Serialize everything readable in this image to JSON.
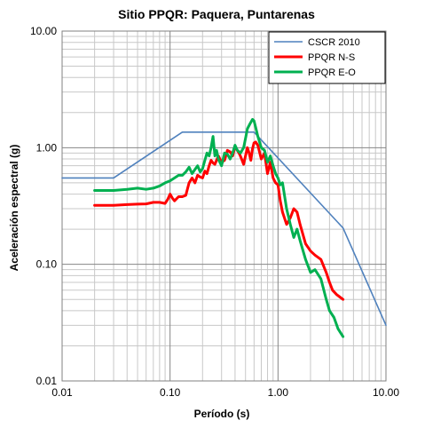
{
  "chart_data": {
    "type": "line",
    "title": "Sitio PPQR: Paquera, Puntarenas",
    "xlabel": "Período (s)",
    "ylabel": "Aceleración espectral (g)",
    "x_scale": "log",
    "y_scale": "log",
    "xlim": [
      0.01,
      10
    ],
    "ylim": [
      0.01,
      10
    ],
    "grid": true,
    "legend_position": "top-right",
    "x_ticks": [
      {
        "value": 0.01,
        "label": "0.01"
      },
      {
        "value": 0.1,
        "label": "0.10"
      },
      {
        "value": 1,
        "label": "1.00"
      },
      {
        "value": 10,
        "label": "10.00"
      }
    ],
    "y_ticks": [
      {
        "value": 10,
        "label": "10.00"
      },
      {
        "value": 1,
        "label": "1.00"
      },
      {
        "value": 0.1,
        "label": "0.10"
      },
      {
        "value": 0.01,
        "label": "0.01"
      }
    ],
    "series": [
      {
        "name": "CSCR 2010",
        "color": "#4f81bd",
        "x": [
          0.01,
          0.03,
          0.13,
          0.6,
          4.0,
          10.0
        ],
        "y": [
          0.55,
          0.55,
          1.36,
          1.36,
          0.205,
          0.03
        ]
      },
      {
        "name": "PPQR  N-S",
        "color": "#ff0000",
        "x": [
          0.02,
          0.03,
          0.04,
          0.05,
          0.06,
          0.07,
          0.08,
          0.09,
          0.095,
          0.1,
          0.105,
          0.11,
          0.12,
          0.13,
          0.14,
          0.15,
          0.16,
          0.17,
          0.18,
          0.19,
          0.2,
          0.21,
          0.22,
          0.23,
          0.24,
          0.25,
          0.26,
          0.28,
          0.3,
          0.32,
          0.34,
          0.36,
          0.38,
          0.4,
          0.42,
          0.44,
          0.46,
          0.48,
          0.5,
          0.52,
          0.54,
          0.56,
          0.58,
          0.6,
          0.62,
          0.65,
          0.7,
          0.75,
          0.8,
          0.85,
          0.9,
          0.95,
          1.0,
          1.05,
          1.1,
          1.2,
          1.3,
          1.4,
          1.5,
          1.6,
          1.8,
          2.0,
          2.2,
          2.5,
          2.8,
          3.0,
          3.2,
          3.5,
          4.0
        ],
        "y": [
          0.32,
          0.32,
          0.325,
          0.328,
          0.33,
          0.34,
          0.34,
          0.333,
          0.36,
          0.4,
          0.37,
          0.35,
          0.38,
          0.38,
          0.39,
          0.5,
          0.55,
          0.5,
          0.58,
          0.56,
          0.55,
          0.63,
          0.6,
          0.7,
          0.78,
          0.74,
          0.72,
          0.85,
          0.75,
          0.78,
          0.95,
          0.92,
          0.85,
          1.02,
          0.95,
          0.88,
          0.8,
          0.72,
          0.85,
          1.0,
          0.9,
          0.78,
          0.98,
          1.1,
          1.12,
          1.05,
          0.8,
          0.9,
          0.6,
          0.75,
          0.55,
          0.5,
          0.48,
          0.35,
          0.28,
          0.22,
          0.25,
          0.3,
          0.28,
          0.22,
          0.15,
          0.13,
          0.12,
          0.11,
          0.085,
          0.07,
          0.06,
          0.055,
          0.05
        ]
      },
      {
        "name": "PPQR E-O",
        "color": "#00b050",
        "x": [
          0.02,
          0.03,
          0.04,
          0.05,
          0.06,
          0.07,
          0.08,
          0.09,
          0.1,
          0.11,
          0.12,
          0.13,
          0.14,
          0.15,
          0.16,
          0.17,
          0.18,
          0.19,
          0.2,
          0.21,
          0.22,
          0.23,
          0.24,
          0.25,
          0.26,
          0.27,
          0.28,
          0.3,
          0.32,
          0.34,
          0.36,
          0.38,
          0.4,
          0.42,
          0.45,
          0.48,
          0.5,
          0.52,
          0.55,
          0.58,
          0.6,
          0.62,
          0.65,
          0.7,
          0.75,
          0.8,
          0.85,
          0.9,
          0.95,
          1.0,
          1.05,
          1.1,
          1.2,
          1.3,
          1.4,
          1.5,
          1.6,
          1.8,
          2.0,
          2.2,
          2.5,
          2.8,
          3.0,
          3.3,
          3.6,
          4.0
        ],
        "y": [
          0.43,
          0.43,
          0.44,
          0.45,
          0.44,
          0.45,
          0.47,
          0.5,
          0.52,
          0.55,
          0.58,
          0.58,
          0.62,
          0.68,
          0.6,
          0.65,
          0.7,
          0.62,
          0.66,
          0.78,
          0.9,
          0.85,
          1.0,
          1.25,
          0.85,
          0.95,
          0.8,
          0.7,
          0.9,
          0.88,
          0.8,
          0.9,
          1.05,
          0.95,
          0.9,
          1.0,
          1.2,
          1.45,
          1.6,
          1.75,
          1.7,
          1.5,
          1.25,
          1.0,
          0.95,
          0.75,
          0.85,
          0.7,
          0.6,
          0.55,
          0.48,
          0.5,
          0.3,
          0.22,
          0.17,
          0.2,
          0.16,
          0.11,
          0.085,
          0.09,
          0.075,
          0.05,
          0.04,
          0.035,
          0.028,
          0.024
        ]
      }
    ]
  }
}
